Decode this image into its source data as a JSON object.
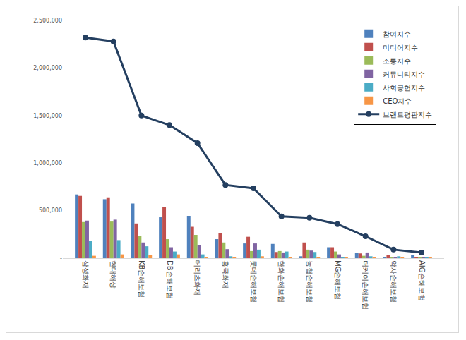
{
  "chart_data": {
    "type": "bar",
    "categories": [
      "삼성화재",
      "현대해상",
      "KB손해보험",
      "DB손해보험",
      "메리츠화재",
      "흥국화재",
      "롯데손해보험",
      "한화손해보험",
      "농협손해보험",
      "MG손해보험",
      "더케이손해보험",
      "악사손해보험",
      "AIG손해보험"
    ],
    "series": [
      {
        "name": "참여지수",
        "color": "#4f81bd",
        "values": [
          670000,
          620000,
          575000,
          430000,
          445000,
          200000,
          155000,
          150000,
          20000,
          115000,
          55000,
          10000,
          30000
        ]
      },
      {
        "name": "미디어지수",
        "color": "#c0504d",
        "values": [
          655000,
          640000,
          365000,
          535000,
          330000,
          265000,
          225000,
          65000,
          165000,
          115000,
          50000,
          30000,
          5000
        ]
      },
      {
        "name": "소통지수",
        "color": "#9bbb59",
        "values": [
          380000,
          385000,
          235000,
          200000,
          245000,
          165000,
          75000,
          75000,
          90000,
          70000,
          25000,
          15000,
          3000
        ]
      },
      {
        "name": "커뮤니티지수",
        "color": "#8064a2",
        "values": [
          395000,
          405000,
          165000,
          115000,
          140000,
          95000,
          155000,
          60000,
          80000,
          40000,
          60000,
          10000,
          3000
        ]
      },
      {
        "name": "사회공헌지수",
        "color": "#4bacc6",
        "values": [
          185000,
          190000,
          125000,
          70000,
          40000,
          20000,
          90000,
          70000,
          65000,
          10000,
          20000,
          20000,
          15000
        ]
      },
      {
        "name": "CEO지수",
        "color": "#f79646",
        "values": [
          25000,
          40000,
          30000,
          40000,
          10000,
          5000,
          20000,
          10000,
          5000,
          3000,
          5000,
          5000,
          3000
        ]
      },
      {
        "name": "브랜드평판지수",
        "color": "#243f60",
        "type": "line",
        "marker": "circle",
        "values": [
          2320000,
          2280000,
          1500000,
          1400000,
          1210000,
          770000,
          735000,
          440000,
          425000,
          358000,
          230000,
          90000,
          60000
        ]
      }
    ],
    "ylim": [
      0,
      2500000
    ],
    "yticks": [
      {
        "value": 0,
        "label": "-"
      },
      {
        "value": 500000,
        "label": "500,000"
      },
      {
        "value": 1000000,
        "label": "1,000,000"
      },
      {
        "value": 1500000,
        "label": "1,500,000"
      },
      {
        "value": 2000000,
        "label": "2,000,000"
      },
      {
        "value": 2500000,
        "label": "2,500,000"
      }
    ],
    "grid": false,
    "legend": "top right"
  }
}
